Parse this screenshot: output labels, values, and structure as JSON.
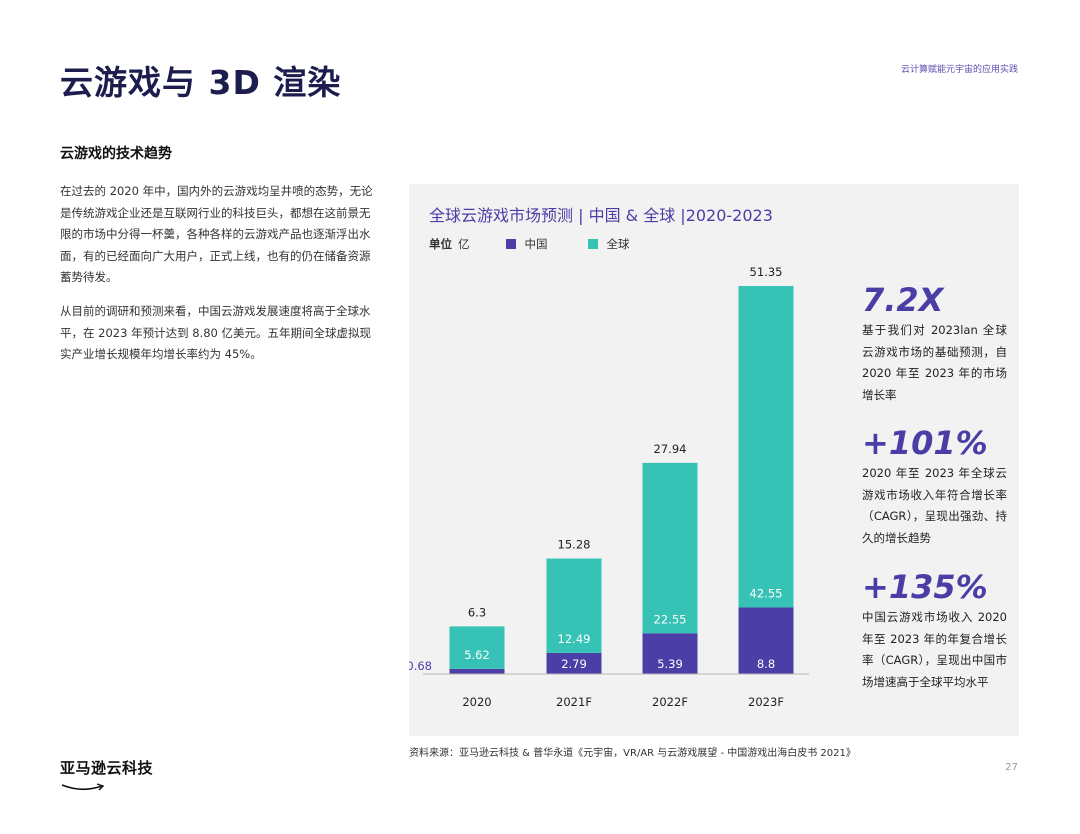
{
  "page": {
    "title": "云游戏与 3D 渲染",
    "header_note": "云计算赋能元宇宙的应用实践",
    "page_number": "27"
  },
  "section": {
    "title": "云游戏的技术趋势",
    "paragraphs": [
      "在过去的 2020 年中，国内外的云游戏均呈井喷的态势，无论是传统游戏企业还是互联网行业的科技巨头，都想在这前景无限的市场中分得一杯羹，各种各样的云游戏产品也逐渐浮出水面，有的已经面向广大用户，正式上线，也有的仍在储备资源蓄势待发。",
      "从目前的调研和预测来看，中国云游戏发展速度将高于全球水平，在 2023 年预计达到 8.80 亿美元。五年期间全球虚拟现实产业增长规模年均增长率约为 45%。"
    ]
  },
  "legend": {
    "unit_label": "单位",
    "unit_value": "亿"
  },
  "stats": [
    {
      "value": "7.2X",
      "description": "基于我们对 2023lan 全球云游戏市场的基础预测，自 2020 年至 2023 年的市场增长率"
    },
    {
      "value": "+101%",
      "description": "2020 年至 2023 年全球云游戏市场收入年符合增长率（CAGR），呈现出强劲、持久的增长趋势"
    },
    {
      "value": "+135%",
      "description": "中国云游戏市场收入 2020 年至 2023 年的年复合增长率（CAGR），呈现出中国市场增速高于全球平均水平"
    }
  ],
  "source": "资料来源：亚马逊云科技 & 普华永道《元宇宙，VR/AR 与云游戏展望 - 中国游戏出海白皮书 2021》",
  "logo": {
    "text": "亚马逊云科技"
  },
  "chart_data": {
    "type": "bar",
    "stacked": true,
    "title": "全球云游戏市场预测 | 中国 & 全球 |2020-2023",
    "categories": [
      "2020",
      "2021F",
      "2022F",
      "2023F"
    ],
    "series": [
      {
        "name": "中国",
        "values": [
          0.68,
          2.79,
          5.39,
          8.8
        ],
        "color": "#4b3fa7"
      },
      {
        "name": "全球",
        "values": [
          5.62,
          12.49,
          22.55,
          42.55
        ],
        "color": "#36c2b4"
      }
    ],
    "totals": [
      6.3,
      15.28,
      27.94,
      51.35
    ],
    "ylim": [
      0,
      51.35
    ],
    "grid": false,
    "legend_position": "top-left"
  }
}
